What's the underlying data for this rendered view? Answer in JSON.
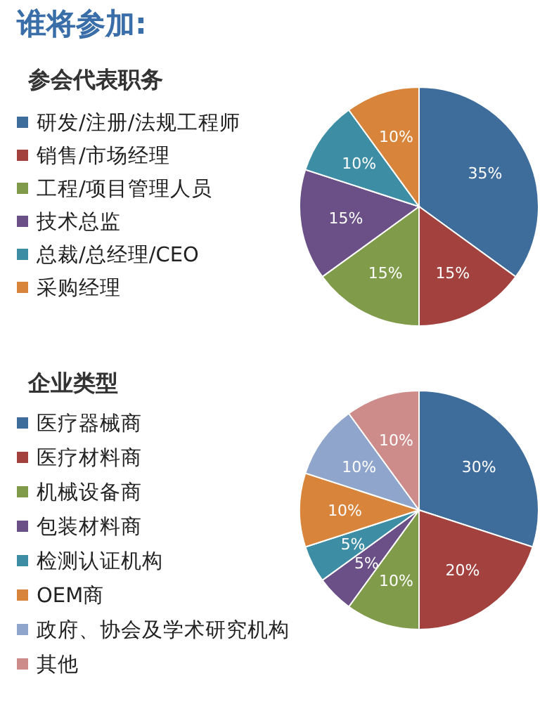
{
  "chart_data": [
    {
      "type": "pie",
      "title": "谁将参加:",
      "subtitle": "参会代表职务",
      "categories": [
        "研发/注册/法规工程师",
        "销售/市场经理",
        "工程/项目管理人员",
        "技术总监",
        "总裁/总经理/CEO",
        "采购经理"
      ],
      "values": [
        35,
        15,
        15,
        15,
        10,
        10
      ],
      "value_labels": [
        "35%",
        "15%",
        "15%",
        "15%",
        "10%",
        "10%"
      ],
      "colors": [
        "#3f6d9b",
        "#a2413d",
        "#809b49",
        "#6a5087",
        "#3d8ea5",
        "#d8843b"
      ],
      "legend": "left"
    },
    {
      "type": "pie",
      "title": "企业类型",
      "categories": [
        "医疗器械商",
        "医疗材料商",
        "机械设备商",
        "包装材料商",
        "检测认证机构",
        "OEM商",
        "政府、协会及学术研究机构",
        "其他"
      ],
      "values": [
        30,
        20,
        10,
        5,
        5,
        10,
        10,
        10
      ],
      "value_labels": [
        "30%",
        "20%",
        "10%",
        "5%",
        "5%",
        "10%",
        "10%",
        "10%"
      ],
      "colors": [
        "#3f6d9b",
        "#a2413d",
        "#809b49",
        "#6a5087",
        "#3d8ea5",
        "#d8843b",
        "#8fa5cb",
        "#cd8b8a"
      ],
      "legend": "left"
    }
  ]
}
